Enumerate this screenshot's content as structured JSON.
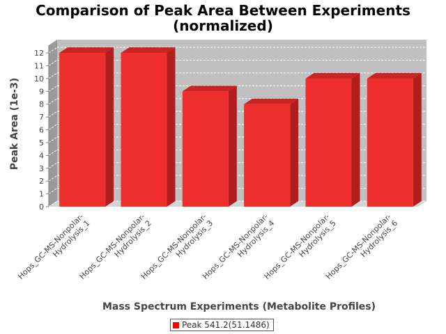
{
  "chart_data": {
    "type": "bar",
    "title_line1": "Comparison of Peak Area Between Experiments",
    "title_line2": "(normalized)",
    "xlabel": "Mass Spectrum Experiments (Metabolite Profiles)",
    "ylabel": "Peak Area (1e-3)",
    "ylim": [
      0,
      12.6
    ],
    "yticks": [
      0,
      1,
      2,
      3,
      4,
      5,
      6,
      7,
      8,
      9,
      10,
      11,
      12
    ],
    "grid": true,
    "legend_position": "bottom",
    "categories": [
      [
        "Hops_GC-MS-Nonpolar-",
        "Hydrolysis_1"
      ],
      [
        "Hops_GC-MS-Nonpolar-",
        "Hydrolysis_2"
      ],
      [
        "Hops_GC-MS-Nonpolar-",
        "Hydrolysis_3"
      ],
      [
        "Hops_GC-MS-Nonpolar-",
        "Hydrolysis_4"
      ],
      [
        "Hops_GC-MS-Nonpolar-",
        "Hydrolysis_5"
      ],
      [
        "Hops_GC-MS-Nonpolar-",
        "Hydrolysis_6"
      ]
    ],
    "series": [
      {
        "name": "Peak 541.2(51.1486)",
        "values": [
          12,
          12,
          9,
          8,
          10,
          10
        ],
        "color": "#ff0000"
      }
    ],
    "colors": {
      "plot_background": "#c0c0c0",
      "bar_front": "#ee2d2d",
      "bar_side": "#b01e1e",
      "bar_top": "#c82424",
      "grid": "#ffffff"
    }
  }
}
